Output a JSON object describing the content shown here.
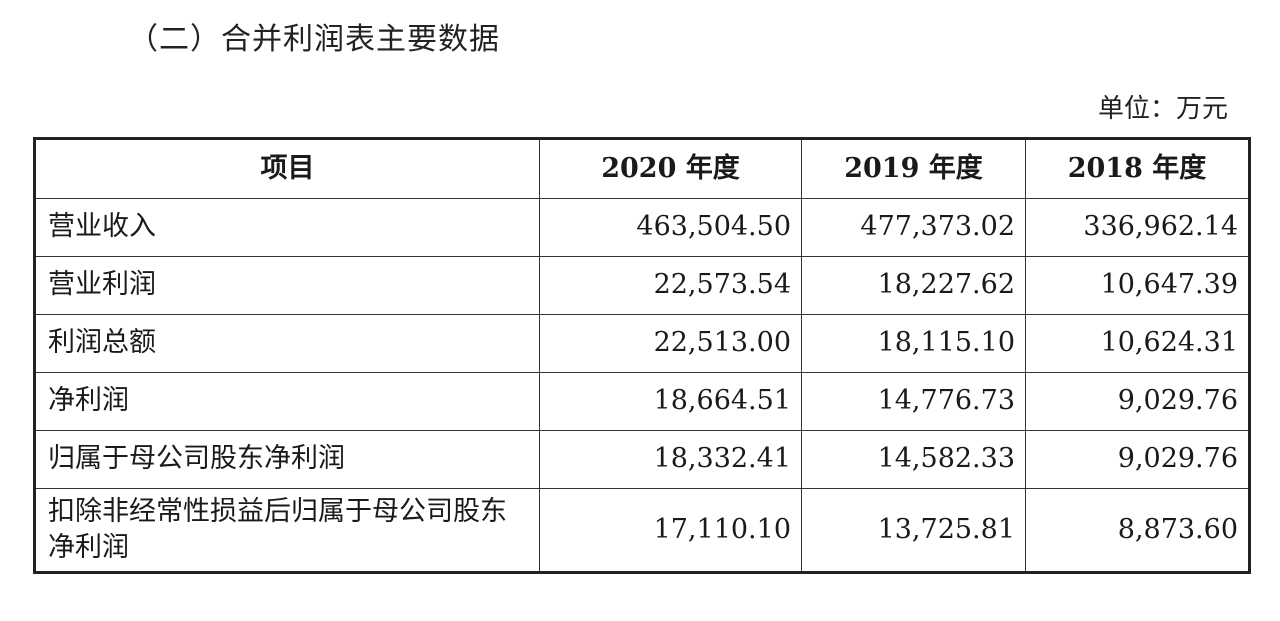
{
  "heading": "（二）合并利润表主要数据",
  "unit": "单位：万元",
  "table": {
    "headers": [
      "项目",
      "2020 年度",
      "2019 年度",
      "2018 年度"
    ],
    "rows": [
      {
        "label": "营业收入",
        "values": [
          "463,504.50",
          "477,373.02",
          "336,962.14"
        ]
      },
      {
        "label": "营业利润",
        "values": [
          "22,573.54",
          "18,227.62",
          "10,647.39"
        ]
      },
      {
        "label": "利润总额",
        "values": [
          "22,513.00",
          "18,115.10",
          "10,624.31"
        ]
      },
      {
        "label": "净利润",
        "values": [
          "18,664.51",
          "14,776.73",
          "9,029.76"
        ]
      },
      {
        "label": "归属于母公司股东净利润",
        "values": [
          "18,332.41",
          "14,582.33",
          "9,029.76"
        ]
      },
      {
        "label": "扣除非经常性损益后归属于母公司股东净利润",
        "values": [
          "17,110.10",
          "13,725.81",
          "8,873.60"
        ]
      }
    ]
  }
}
